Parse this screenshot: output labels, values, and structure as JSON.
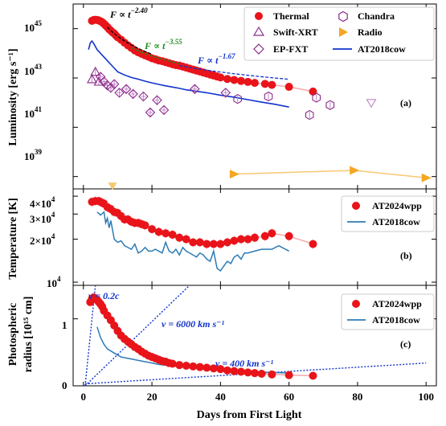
{
  "colors": {
    "red": "#e8141a",
    "pink": "#f6a6a8",
    "purple": "#8a2a8a",
    "purple_light": "#c183c8",
    "orange": "#f5a623",
    "orange_light": "#f7c873",
    "blue": "#1133cc",
    "steel": "#2c7bb6",
    "green": "#1f8a1f"
  },
  "x_axis": {
    "label": "Days from First Light",
    "ticks": [
      "0",
      "20",
      "40",
      "60",
      "80",
      "100"
    ],
    "values": [
      0,
      20,
      40,
      60,
      80,
      100
    ],
    "range": [
      -3,
      103
    ]
  },
  "panels": {
    "a": {
      "tag": "(a)",
      "ylabel": "Luminosity [erg s⁻¹]",
      "ticks_base": [
        "10",
        "10",
        "10",
        "10"
      ],
      "ticks_exp": [
        "45",
        "43",
        "41",
        "39"
      ],
      "legend": {
        "thermal": "Thermal",
        "swift": "Swift-XRT",
        "epfxt": "EP-FXT",
        "chandra": "Chandra",
        "radio": "Radio",
        "cow": "AT2018cow"
      },
      "ann1": {
        "pre": "F",
        "exp": "−2.40"
      },
      "ann2": {
        "pre": "F",
        "exp": "−3.55"
      },
      "ann3": {
        "pre": "F",
        "exp": "−1.67"
      }
    },
    "b": {
      "tag": "(b)",
      "ylabel": "Temperature [K]",
      "ticks_base": [
        "4×10",
        "3×10",
        "2×10",
        "10"
      ],
      "ticks_exp": [
        "4",
        "4",
        "4",
        "4"
      ],
      "legend": {
        "wpp": "AT2024wpp",
        "cow": "AT2018cow"
      }
    },
    "c": {
      "tag": "(c)",
      "ylabel_line1": "Photospheric",
      "ylabel_line2": "radius [10¹⁵ cm]",
      "ticks": [
        "0",
        "1"
      ],
      "legend": {
        "wpp": "AT2024wpp",
        "cow": "AT2018cow"
      },
      "v1": "v = 0.2c",
      "v2": "v = 6000 km s⁻¹",
      "v3": "v = 400 km s⁻¹"
    }
  },
  "chart_data": [
    {
      "type": "scatter",
      "panel": "a",
      "ylabel": "Luminosity [erg s^-1]",
      "yscale": "log",
      "ylim_log10": [
        38.5,
        46.0
      ],
      "series": [
        {
          "name": "Thermal",
          "marker": "filled-circle",
          "x": [
            2.5,
            3.0,
            3.5,
            4.0,
            4.5,
            5.0,
            5.5,
            6.0,
            6.5,
            7.0,
            7.5,
            8.0,
            8.5,
            9.0,
            9.5,
            10.0,
            11.0,
            12.0,
            13.0,
            14.0,
            15.0,
            16.0,
            17.0,
            18.0,
            19.0,
            20.0,
            21.0,
            22.0,
            23.0,
            24.0,
            25.0,
            26.0,
            27.0,
            28.0,
            29.0,
            30.0,
            31.0,
            32.0,
            33.0,
            34.0,
            35.0,
            36.0,
            37.0,
            38.0,
            39.0,
            40.0,
            42.0,
            44.0,
            46.0,
            48.0,
            50.0,
            53.0,
            55.0,
            60.0,
            67.0
          ],
          "log10y": [
            45.32,
            45.35,
            45.36,
            45.35,
            45.33,
            45.3,
            45.26,
            45.2,
            45.13,
            45.06,
            44.98,
            44.92,
            44.85,
            44.8,
            44.72,
            44.65,
            44.55,
            44.43,
            44.32,
            44.22,
            44.12,
            44.04,
            43.98,
            43.92,
            43.86,
            43.8,
            43.76,
            43.71,
            43.68,
            43.64,
            43.6,
            43.56,
            43.52,
            43.5,
            43.46,
            43.42,
            43.38,
            43.34,
            43.3,
            43.26,
            43.22,
            43.18,
            43.14,
            43.1,
            43.06,
            43.02,
            42.96,
            42.92,
            42.88,
            42.84,
            42.8,
            42.76,
            42.72,
            42.64,
            42.45
          ]
        },
        {
          "name": "Swift-XRT",
          "marker": "open-triangle",
          "x": [
            2.5,
            3.5,
            4.5
          ],
          "log10y": [
            42.95,
            43.25,
            42.85
          ]
        },
        {
          "name": "EP-FXT",
          "marker": "open-diamond",
          "x": [
            5.0,
            6.0,
            7.0,
            8.0,
            9.0,
            10.5,
            12.5,
            14.5,
            17.5,
            19.5,
            21.5,
            23.5,
            32.5,
            41.5
          ],
          "log10y": [
            43.05,
            42.85,
            42.7,
            42.6,
            42.75,
            42.4,
            42.55,
            42.35,
            42.25,
            41.6,
            42.1,
            41.7,
            42.55,
            42.4
          ]
        },
        {
          "name": "Chandra",
          "marker": "open-hexagon",
          "x": [
            45.0,
            54.0,
            66.0,
            68.0,
            72.0
          ],
          "log10y": [
            42.15,
            42.25,
            41.5,
            42.2,
            41.9
          ]
        },
        {
          "name": "Chandra upper limit",
          "marker": "open-down-triangle",
          "x": [
            84.0
          ],
          "log10y": [
            42.0
          ]
        },
        {
          "name": "Radio",
          "marker": "filled-right-triangle",
          "x": [
            44.0,
            79.0,
            100.0
          ],
          "log10y": [
            39.1,
            39.25,
            38.95
          ]
        },
        {
          "name": "AT2018cow",
          "marker": "line",
          "x": [
            1.5,
            2.0,
            2.5,
            3.0,
            4.0,
            5.0,
            6.0,
            7.0,
            8.0,
            9.0,
            10.0,
            12.0,
            14.0,
            16.0,
            18.0,
            20.0,
            22.0,
            24.0,
            26.0,
            28.0,
            30.0,
            33.0,
            36.0,
            40.0,
            44.0,
            48.0,
            52.0,
            56.0,
            60.0
          ],
          "log10y": [
            44.15,
            44.42,
            44.5,
            44.4,
            44.15,
            44.0,
            43.85,
            43.7,
            43.55,
            43.4,
            43.25,
            43.12,
            43.02,
            42.95,
            42.87,
            42.8,
            42.74,
            42.68,
            42.63,
            42.58,
            42.52,
            42.46,
            42.4,
            42.3,
            42.22,
            42.12,
            42.02,
            41.93,
            41.82
          ]
        }
      ]
    },
    {
      "type": "scatter",
      "panel": "b",
      "ylabel": "Temperature [K]",
      "yscale": "log",
      "ylim": [
        9500,
        45000
      ],
      "series": [
        {
          "name": "AT2024wpp",
          "marker": "filled-circle",
          "x": [
            2.5,
            3.5,
            4.5,
            5.0,
            5.5,
            6.0,
            7.0,
            8.0,
            9.0,
            10.0,
            11.0,
            12.0,
            13.0,
            14.0,
            15.0,
            16.0,
            17.0,
            18.0,
            20.0,
            22.0,
            24.0,
            26.0,
            28.0,
            30.0,
            32.0,
            34.0,
            36.0,
            38.0,
            40.0,
            42.0,
            44.0,
            46.0,
            48.0,
            50.0,
            53.0,
            55.0,
            60.0,
            67.0
          ],
          "y": [
            36500,
            37000,
            37000,
            36500,
            36000,
            35500,
            33500,
            32500,
            31000,
            30500,
            29000,
            27500,
            27500,
            26500,
            26000,
            26000,
            25500,
            25000,
            23500,
            22500,
            22000,
            21500,
            20500,
            20000,
            19000,
            19000,
            18500,
            18500,
            18500,
            19000,
            19500,
            20000,
            20000,
            20500,
            21000,
            22000,
            21000,
            18500
          ]
        },
        {
          "name": "AT2018cow",
          "marker": "line",
          "x": [
            4.0,
            5.0,
            6.0,
            6.5,
            7.0,
            7.5,
            8.0,
            9.0,
            10.0,
            11.0,
            12.0,
            13.0,
            14.0,
            15.0,
            16.0,
            17.0,
            18.0,
            19.0,
            20.0,
            21.0,
            22.0,
            23.0,
            24.0,
            25.0,
            26.0,
            27.0,
            28.0,
            29.0,
            30.0,
            31.0,
            32.0,
            33.0,
            34.0,
            35.0,
            36.0,
            37.0,
            38.0,
            39.0,
            40.0,
            41.0,
            42.0,
            43.0,
            44.0,
            45.0,
            46.0,
            47.0,
            48.0,
            50.0,
            52.0,
            55.0,
            57.0,
            60.0
          ],
          "y": [
            31000,
            29500,
            31000,
            26000,
            28000,
            24000,
            27000,
            20000,
            19000,
            19500,
            18000,
            17500,
            17000,
            18500,
            16000,
            16500,
            17500,
            16500,
            16500,
            17000,
            16500,
            16000,
            19000,
            16500,
            16000,
            17000,
            15500,
            17500,
            16500,
            16000,
            15500,
            15000,
            16000,
            15500,
            14500,
            14000,
            16500,
            12500,
            12000,
            13000,
            14000,
            13500,
            15000,
            15500,
            14500,
            16000,
            16000,
            16500,
            17000,
            17000,
            18000,
            16500
          ]
        }
      ]
    },
    {
      "type": "scatter",
      "panel": "c",
      "ylabel": "Photospheric radius [10^15 cm]",
      "ylim": [
        0,
        1.5
      ],
      "series": [
        {
          "name": "AT2024wpp",
          "marker": "filled-circle",
          "x": [
            2.0,
            2.5,
            3.0,
            3.5,
            4.0,
            4.5,
            5.0,
            5.5,
            6.0,
            7.0,
            8.0,
            9.0,
            10.0,
            11.0,
            12.0,
            13.0,
            14.0,
            15.0,
            16.0,
            17.0,
            18.0,
            19.0,
            20.0,
            21.0,
            22.0,
            23.0,
            24.0,
            25.0,
            26.0,
            28.0,
            30.0,
            32.0,
            34.0,
            36.0,
            38.0,
            40.0,
            42.0,
            44.0,
            46.0,
            48.0,
            50.0,
            52.0,
            55.0,
            60.0,
            67.0
          ],
          "y": [
            1.25,
            1.3,
            1.32,
            1.3,
            1.28,
            1.25,
            1.22,
            1.18,
            1.12,
            1.05,
            0.98,
            0.9,
            0.82,
            0.75,
            0.7,
            0.66,
            0.62,
            0.58,
            0.55,
            0.51,
            0.48,
            0.45,
            0.43,
            0.41,
            0.39,
            0.37,
            0.36,
            0.34,
            0.33,
            0.31,
            0.3,
            0.29,
            0.28,
            0.27,
            0.26,
            0.25,
            0.23,
            0.22,
            0.21,
            0.2,
            0.19,
            0.18,
            0.17,
            0.16,
            0.15
          ]
        },
        {
          "name": "AT2018cow",
          "marker": "line",
          "x": [
            4.0,
            5.0,
            6.0,
            7.0,
            8.0,
            9.0,
            10.0,
            11.0,
            12.0,
            14.0,
            16.0,
            18.0,
            20.0,
            22.0,
            25.0,
            28.0,
            31.0,
            35.0,
            40.0,
            45.0,
            50.0,
            55.0,
            60.0
          ],
          "y": [
            0.88,
            0.72,
            0.62,
            0.55,
            0.52,
            0.49,
            0.46,
            0.43,
            0.42,
            0.4,
            0.38,
            0.36,
            0.34,
            0.32,
            0.3,
            0.29,
            0.28,
            0.27,
            0.25,
            0.23,
            0.21,
            0.2,
            0.19
          ]
        }
      ],
      "reference_lines": [
        {
          "label": "v = 0.2c",
          "x": [
            0.5,
            3.5
          ],
          "y": [
            0.0,
            1.5
          ]
        },
        {
          "label": "v = 6000 km s^-1",
          "x": [
            0.5,
            31.0
          ],
          "y": [
            0.0,
            1.5
          ]
        },
        {
          "label": "v = 400 km s^-1",
          "x": [
            0.5,
            100.0
          ],
          "y": [
            0.03,
            0.34
          ]
        }
      ]
    }
  ]
}
